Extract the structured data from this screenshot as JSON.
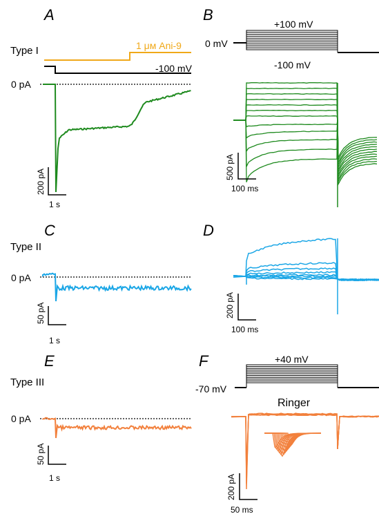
{
  "colors": {
    "type1": "#1e8a1e",
    "type2": "#1aa6e6",
    "type3": "#f2803c",
    "drug": "#f0a818",
    "black": "#000000"
  },
  "panels": {
    "A": "A",
    "B": "B",
    "C": "C",
    "D": "D",
    "E": "E",
    "F": "F"
  },
  "labels": {
    "type1": "Type I",
    "type2": "Type II",
    "type3": "Type III",
    "drug": "1 μм Ani-9",
    "zero_pa_a": "0 pA",
    "zero_pa_c": "0 pA",
    "zero_pa_e": "0 pA",
    "minus100_a": "-100 mV",
    "zero_mv": "0 mV",
    "plus100": "+100 mV",
    "minus100_b": "-100 mV",
    "plus40": "+40 mV",
    "minus70": "-70 mV",
    "ringer": "Ringer"
  },
  "scalebars": {
    "A": {
      "current": "200 pA",
      "time": "1 s"
    },
    "B": {
      "current": "500 pA",
      "time": "100 ms"
    },
    "C": {
      "current": "50 pA",
      "time": "1 s"
    },
    "D": {
      "current": "200 pA",
      "time": "100 ms"
    },
    "E": {
      "current": "50 pA",
      "time": "1 s"
    },
    "F": {
      "current": "200 pA",
      "time": "50 ms"
    }
  },
  "chart_data": [
    {
      "panel": "A",
      "type": "line",
      "series": [
        {
          "name": "Type I",
          "description": "whole-cell current at -100 mV before and after 1 μм Ani-9"
        }
      ]
    },
    {
      "panel": "B",
      "type": "line",
      "protocol": {
        "holding": "0 mV",
        "steps_from": "-100 mV",
        "steps_to": "+100 mV"
      }
    },
    {
      "panel": "C",
      "type": "line",
      "series": [
        {
          "name": "Type II"
        }
      ]
    },
    {
      "panel": "D",
      "type": "line"
    },
    {
      "panel": "E",
      "type": "line",
      "series": [
        {
          "name": "Type III"
        }
      ]
    },
    {
      "panel": "F",
      "type": "line",
      "protocol": {
        "holding": "-70 mV",
        "steps_to": "+40 mV",
        "solution": "Ringer"
      }
    }
  ]
}
